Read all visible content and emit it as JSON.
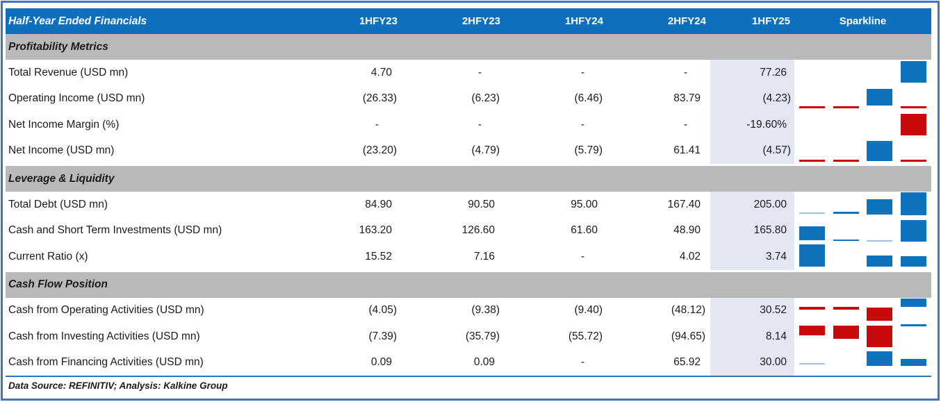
{
  "table": {
    "title": "Half-Year Ended Financials",
    "columns": [
      "1HFY23",
      "2HFY23",
      "1HFY24",
      "2HFY24",
      "1HFY25"
    ],
    "sparkline_header": "Sparkline",
    "sections": [
      {
        "title": "Profitability Metrics",
        "rows": [
          {
            "label": "Total Revenue (USD mn)",
            "values": [
              "4.70",
              "-",
              "-",
              "-",
              "77.26"
            ],
            "spark": [
              null,
              null,
              null,
              {
                "c": "blue",
                "t": 2,
                "h": 31
              }
            ]
          },
          {
            "label": "Operating Income (USD mn)",
            "values": [
              "(26.33)",
              "(6.23)",
              "(6.46)",
              "83.79",
              "(4.23)"
            ],
            "spark": [
              {
                "c": "red",
                "t": 29,
                "h": 3
              },
              {
                "c": "red",
                "t": 29,
                "h": 3
              },
              {
                "c": "blue",
                "t": 4,
                "h": 24
              },
              {
                "c": "red",
                "t": 29,
                "h": 3
              }
            ]
          },
          {
            "label": "Net Income Margin (%)",
            "values": [
              "-",
              "-",
              "-",
              "-",
              "-19.60%"
            ],
            "spark": [
              null,
              null,
              null,
              {
                "c": "red",
                "t": 3,
                "h": 31
              }
            ]
          },
          {
            "label": "Net Income (USD mn)",
            "values": [
              "(23.20)",
              "(4.79)",
              "(5.79)",
              "61.41",
              "(4.57)"
            ],
            "spark": [
              {
                "c": "red",
                "t": 31,
                "h": 3
              },
              {
                "c": "red",
                "t": 31,
                "h": 3
              },
              {
                "c": "blue",
                "t": 4,
                "h": 29
              },
              {
                "c": "red",
                "t": 31,
                "h": 3
              }
            ]
          }
        ]
      },
      {
        "title": "Leverage & Liquidity",
        "rows": [
          {
            "label": "Total Debt (USD mn)",
            "values": [
              "84.90",
              "90.50",
              "95.00",
              "167.40",
              "205.00"
            ],
            "spark": [
              {
                "c": "light",
                "t": 30,
                "h": 2
              },
              {
                "c": "blue",
                "t": 29,
                "h": 3
              },
              {
                "c": "blue",
                "t": 11,
                "h": 22
              },
              {
                "c": "blue",
                "t": 1,
                "h": 33
              }
            ]
          },
          {
            "label": "Cash and Short Term Investments (USD mn)",
            "values": [
              "163.20",
              "126.60",
              "61.60",
              "48.90",
              "165.80"
            ],
            "spark": [
              {
                "c": "blue",
                "t": 12,
                "h": 20
              },
              {
                "c": "blue",
                "t": 31,
                "h": 2
              },
              {
                "c": "light",
                "t": 32,
                "h": 2
              },
              {
                "c": "blue",
                "t": 3,
                "h": 31
              }
            ]
          },
          {
            "label": "Current Ratio (x)",
            "values": [
              "15.52",
              "7.16",
              "-",
              "4.02",
              "3.74"
            ],
            "spark": [
              {
                "c": "blue",
                "t": 1,
                "h": 32
              },
              null,
              {
                "c": "blue",
                "t": 17,
                "h": 16
              },
              {
                "c": "blue",
                "t": 18,
                "h": 15
              }
            ]
          }
        ]
      },
      {
        "title": "Cash Flow Position",
        "rows": [
          {
            "label": "Cash from Operating Activities (USD mn)",
            "values": [
              "(4.05)",
              "(9.38)",
              "(9.40)",
              "(48.12)",
              "30.52"
            ],
            "spark": [
              {
                "c": "red",
                "t": 13,
                "h": 4
              },
              {
                "c": "red",
                "t": 13,
                "h": 4
              },
              {
                "c": "red",
                "t": 14,
                "h": 19
              },
              {
                "c": "blue",
                "t": 1,
                "h": 12
              }
            ]
          },
          {
            "label": "Cash from Investing Activities (USD mn)",
            "values": [
              "(7.39)",
              "(35.79)",
              "(55.72)",
              "(94.65)",
              "8.14"
            ],
            "spark": [
              {
                "c": "red",
                "t": 3,
                "h": 14
              },
              {
                "c": "red",
                "t": 3,
                "h": 19
              },
              {
                "c": "red",
                "t": 3,
                "h": 31
              },
              {
                "c": "blue",
                "t": 1,
                "h": 3
              }
            ]
          },
          {
            "label": "Cash from Financing Activities (USD mn)",
            "values": [
              "0.09",
              "0.09",
              "-",
              "65.92",
              "30.00"
            ],
            "spark": [
              {
                "c": "light",
                "t": 19,
                "h": 2
              },
              null,
              {
                "c": "blue",
                "t": 2,
                "h": 21
              },
              {
                "c": "blue",
                "t": 13,
                "h": 10
              }
            ]
          }
        ]
      }
    ],
    "footer": "Data Source: REFINITIV; Analysis: Kalkine Group"
  },
  "chart_data": {
    "type": "table",
    "title": "Half-Year Ended Financials",
    "categories": [
      "1HFY23",
      "2HFY23",
      "1HFY24",
      "2HFY24",
      "1HFY25"
    ],
    "series": [
      {
        "name": "Total Revenue (USD mn)",
        "values": [
          4.7,
          null,
          null,
          null,
          77.26
        ]
      },
      {
        "name": "Operating Income (USD mn)",
        "values": [
          -26.33,
          -6.23,
          -6.46,
          83.79,
          -4.23
        ]
      },
      {
        "name": "Net Income Margin (%)",
        "values": [
          null,
          null,
          null,
          null,
          -19.6
        ]
      },
      {
        "name": "Net Income (USD mn)",
        "values": [
          -23.2,
          -4.79,
          -5.79,
          61.41,
          -4.57
        ]
      },
      {
        "name": "Total Debt (USD mn)",
        "values": [
          84.9,
          90.5,
          95.0,
          167.4,
          205.0
        ]
      },
      {
        "name": "Cash and Short Term Investments (USD mn)",
        "values": [
          163.2,
          126.6,
          61.6,
          48.9,
          165.8
        ]
      },
      {
        "name": "Current Ratio (x)",
        "values": [
          15.52,
          7.16,
          null,
          4.02,
          3.74
        ]
      },
      {
        "name": "Cash from Operating Activities (USD mn)",
        "values": [
          -4.05,
          -9.38,
          -9.4,
          -48.12,
          30.52
        ]
      },
      {
        "name": "Cash from Investing Activities (USD mn)",
        "values": [
          -7.39,
          -35.79,
          -55.72,
          -94.65,
          8.14
        ]
      },
      {
        "name": "Cash from Financing Activities (USD mn)",
        "values": [
          0.09,
          0.09,
          null,
          65.92,
          30.0
        ]
      }
    ]
  },
  "colors": {
    "header_blue": "#0C70BE",
    "band_gray": "#B9B9B9",
    "highlight": "#E3E6F3",
    "spark_blue": "#0F72BD",
    "spark_red": "#C80A0A",
    "spark_light": "#9DC3E6",
    "rule_blue": "#2E74B5",
    "border_blue": "#4472C4"
  }
}
